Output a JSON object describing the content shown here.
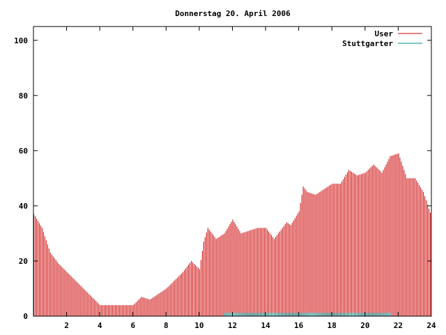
{
  "chart_data": {
    "type": "bar",
    "title": "Donnerstag 20. April 2006",
    "xlabel": "",
    "ylabel": "",
    "xlim": [
      0,
      24
    ],
    "ylim": [
      0,
      105
    ],
    "x_ticks": [
      2,
      4,
      6,
      8,
      10,
      12,
      14,
      16,
      18,
      20,
      22,
      24
    ],
    "y_ticks": [
      0,
      20,
      40,
      60,
      80,
      100
    ],
    "grid": false,
    "legend_position": "top-right",
    "series": [
      {
        "name": "User",
        "color": "#cc0000",
        "x": [
          0.0,
          0.5,
          1.0,
          1.5,
          2.0,
          2.5,
          3.0,
          3.5,
          4.0,
          4.5,
          5.0,
          5.5,
          6.0,
          6.5,
          7.0,
          7.5,
          8.0,
          8.5,
          9.0,
          9.5,
          10.0,
          10.25,
          10.5,
          11.0,
          11.5,
          12.0,
          12.5,
          13.0,
          13.5,
          14.0,
          14.5,
          15.0,
          15.25,
          15.5,
          16.0,
          16.25,
          16.5,
          17.0,
          17.5,
          18.0,
          18.5,
          19.0,
          19.5,
          20.0,
          20.5,
          21.0,
          21.5,
          22.0,
          22.5,
          23.0,
          23.5,
          24.0
        ],
        "values": [
          37,
          32,
          23,
          19,
          16,
          13,
          10,
          7,
          4,
          4,
          4,
          4,
          4,
          7,
          6,
          8,
          10,
          13,
          16,
          20,
          17,
          27,
          32,
          28,
          30,
          35,
          30,
          31,
          32,
          32,
          28,
          32,
          34,
          33,
          38,
          47,
          45,
          44,
          46,
          48,
          48,
          53,
          51,
          52,
          55,
          52,
          58,
          59,
          50,
          50,
          45,
          36
        ]
      },
      {
        "name": "Stuttgarter",
        "color": "#008b8b",
        "x": [
          11.5,
          16.5,
          21.5
        ],
        "values": [
          0.5,
          0.5,
          0.5
        ]
      }
    ]
  },
  "colors": {
    "axis": "#000000",
    "user": "#cc0000",
    "stuttgarter": "#008b8b"
  }
}
